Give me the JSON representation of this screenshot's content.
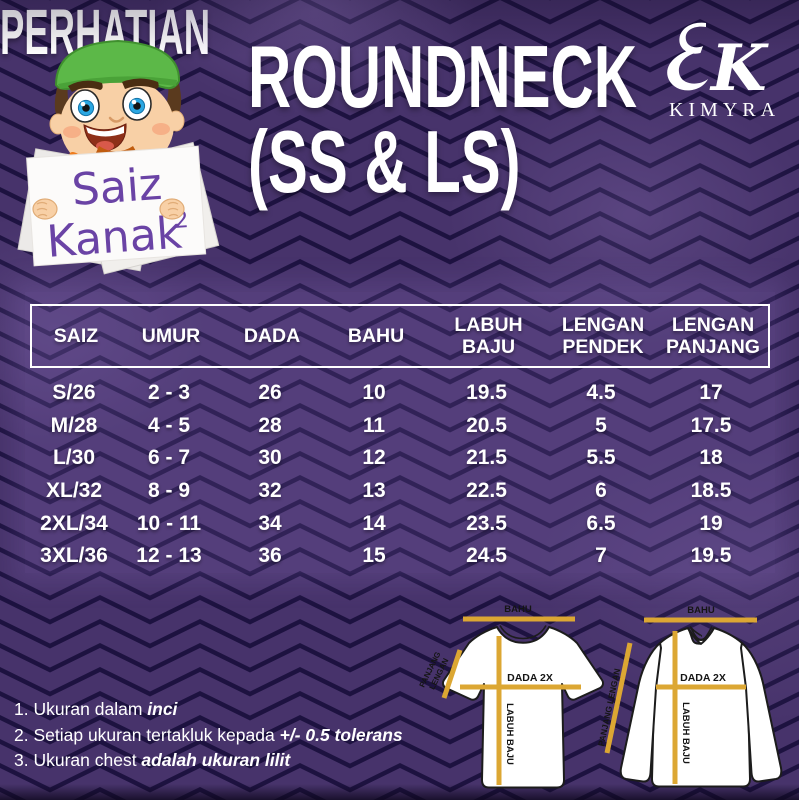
{
  "colors": {
    "background": "#47336b",
    "zigzag_line": "#1d1240",
    "measure_line": "#dca733",
    "sign_text": "#6a43a5",
    "text": "#ffffff"
  },
  "character": {
    "sign_line1": "Saiz",
    "sign_line2": "Kanak",
    "sign_sup": "2"
  },
  "title": {
    "line1": "ROUNDNECK",
    "line2": "(SS & LS)"
  },
  "brand": {
    "name": "KIMYRA"
  },
  "size_table": {
    "columns": [
      "SAIZ",
      "UMUR",
      "DADA",
      "BAHU",
      "LABUH\nBAJU",
      "LENGAN\nPENDEK",
      "LENGAN\nPANJANG"
    ],
    "rows": [
      [
        "S/26",
        "2 - 3",
        "26",
        "10",
        "19.5",
        "4.5",
        "17"
      ],
      [
        "M/28",
        "4 - 5",
        "28",
        "11",
        "20.5",
        "5",
        "17.5"
      ],
      [
        "L/30",
        "6 - 7",
        "30",
        "12",
        "21.5",
        "5.5",
        "18"
      ],
      [
        "XL/32",
        "8 - 9",
        "32",
        "13",
        "22.5",
        "6",
        "18.5"
      ],
      [
        "2XL/34",
        "10 - 11",
        "34",
        "14",
        "23.5",
        "6.5",
        "19"
      ],
      [
        "3XL/36",
        "12 - 13",
        "36",
        "15",
        "24.5",
        "7",
        "19.5"
      ]
    ]
  },
  "notes": {
    "heading": "PERHATIAN",
    "items": [
      {
        "text": "1. Ukuran dalam ",
        "em": "inci"
      },
      {
        "text": "2. Setiap ukuran tertakluk kepada ",
        "em": "+/- 0.5 tolerans"
      },
      {
        "text": "3. Ukuran chest ",
        "em": "adalah ukuran lilit"
      }
    ]
  },
  "diagrams": {
    "short_sleeve": {
      "bahu": "BAHU",
      "dada": "DADA 2X",
      "labuh": "LABUH BAJU",
      "panjang_line1": "PANJANG",
      "panjang_line2": "LENGAN"
    },
    "long_sleeve": {
      "bahu": "BAHU",
      "dada": "DADA 2X",
      "labuh": "LABUH BAJU",
      "panjang": "PANJANG LENGAN"
    }
  }
}
